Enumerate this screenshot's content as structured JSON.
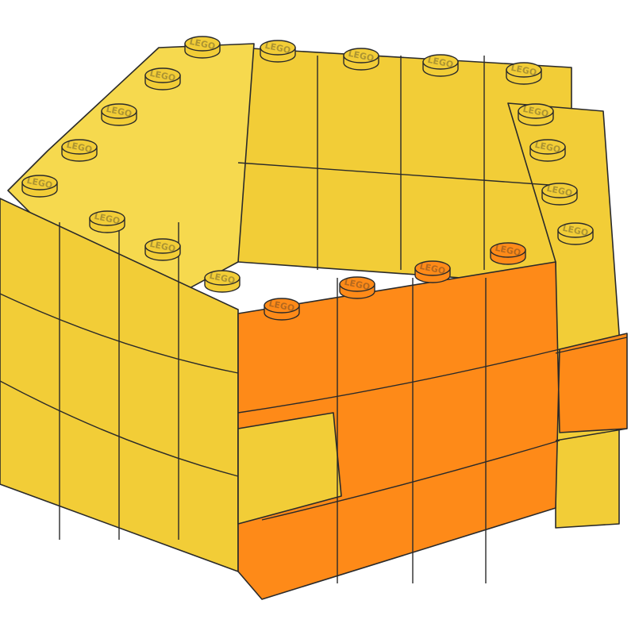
{
  "image": {
    "subject": "LEGO brick wall",
    "stud_logo_text": "LEGO",
    "colors": {
      "yellow": "#F2CD37",
      "yellow_light": "#F6D94E",
      "yellow_dark": "#E5BE2A",
      "orange": "#FE8A18",
      "orange_dark": "#F07A10",
      "outline": "#2A2A2A",
      "background": "#FFFFFF"
    }
  }
}
